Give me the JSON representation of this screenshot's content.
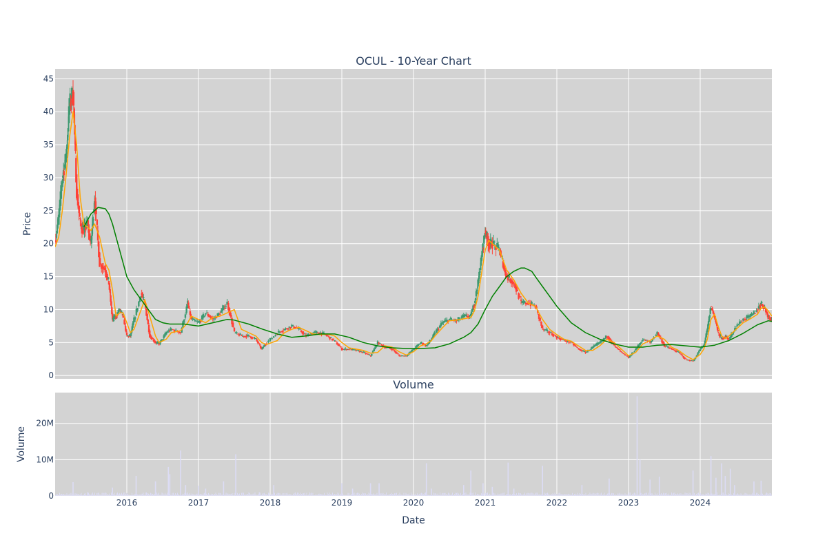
{
  "chart_data": [
    {
      "type": "candlestick",
      "title": "OCUL - 10-Year Chart",
      "ylabel": "Price",
      "ylim": [
        -0.5,
        46.5
      ],
      "y_ticks": [
        0,
        5,
        10,
        15,
        20,
        25,
        30,
        35,
        40,
        45
      ],
      "y_tick_labels": [
        "0",
        "5",
        "10",
        "15",
        "20",
        "25",
        "30",
        "35",
        "40",
        "45"
      ],
      "x_range": [
        2015.0,
        2025.0
      ],
      "grid": true,
      "background": "#d3d3d3",
      "colors": {
        "increasing": "#3d9970",
        "decreasing": "#ff4136",
        "ma_short": "#ffa500",
        "ma_long": "#008000"
      },
      "series": [
        {
          "kind": "close",
          "x": [
            2015.0,
            2015.05,
            2015.1,
            2015.15,
            2015.2,
            2015.25,
            2015.3,
            2015.35,
            2015.4,
            2015.45,
            2015.5,
            2015.55,
            2015.62,
            2015.7,
            2015.75,
            2015.8,
            2015.85,
            2015.9,
            2015.95,
            2016.0,
            2016.05,
            2016.1,
            2016.2,
            2016.25,
            2016.32,
            2016.4,
            2016.45,
            2016.55,
            2016.62,
            2016.75,
            2016.85,
            2016.9,
            2017.0,
            2017.1,
            2017.2,
            2017.3,
            2017.4,
            2017.5,
            2017.6,
            2017.7,
            2017.8,
            2017.88,
            2017.95,
            2018.1,
            2018.2,
            2018.3,
            2018.4,
            2018.5,
            2018.6,
            2018.7,
            2018.8,
            2018.9,
            2019.0,
            2019.1,
            2019.2,
            2019.3,
            2019.4,
            2019.5,
            2019.6,
            2019.7,
            2019.8,
            2019.9,
            2020.0,
            2020.1,
            2020.18,
            2020.25,
            2020.3,
            2020.4,
            2020.5,
            2020.6,
            2020.7,
            2020.8,
            2020.85,
            2020.9,
            2020.95,
            2021.0,
            2021.05,
            2021.1,
            2021.2,
            2021.25,
            2021.3,
            2021.4,
            2021.5,
            2021.6,
            2021.7,
            2021.8,
            2021.9,
            2022.0,
            2022.1,
            2022.2,
            2022.3,
            2022.4,
            2022.5,
            2022.6,
            2022.7,
            2022.8,
            2022.9,
            2023.0,
            2023.1,
            2023.2,
            2023.3,
            2023.4,
            2023.5,
            2023.6,
            2023.7,
            2023.8,
            2023.9,
            2024.0,
            2024.05,
            2024.1,
            2024.15,
            2024.2,
            2024.25,
            2024.3,
            2024.35,
            2024.4,
            2024.5,
            2024.6,
            2024.7,
            2024.8,
            2024.85,
            2024.9,
            2024.95,
            2025.0
          ],
          "values": [
            20.5,
            24,
            30,
            33,
            41,
            43,
            28,
            23,
            22,
            23,
            20,
            27,
            17,
            16,
            14,
            8.5,
            9,
            10,
            9,
            6,
            6,
            8.5,
            12.5,
            11,
            6,
            5,
            4.8,
            6.5,
            7,
            6.5,
            11,
            8.5,
            8,
            9.5,
            8.5,
            9.5,
            11,
            6.5,
            6,
            6,
            5.5,
            4,
            5,
            6.5,
            7,
            7.5,
            7,
            6,
            6.5,
            6.5,
            6,
            5.2,
            4,
            4,
            3.8,
            3.5,
            3,
            5,
            4.3,
            4,
            3,
            3,
            4,
            5,
            4.5,
            5.5,
            6.5,
            8,
            8.5,
            8.3,
            9,
            9,
            11,
            14,
            18,
            22,
            20,
            20,
            19,
            17,
            15,
            14,
            11,
            11,
            10.5,
            7,
            6.5,
            5.8,
            5.3,
            5,
            4,
            3.5,
            4.3,
            5,
            6,
            4.5,
            3.5,
            2.7,
            4,
            5.5,
            5,
            6.5,
            4.5,
            4,
            3.5,
            2.4,
            2.2,
            4,
            4.5,
            7,
            10.5,
            9,
            6.5,
            5.5,
            6,
            5.5,
            7.5,
            8.5,
            9,
            10,
            11,
            10.2,
            9,
            8.5
          ]
        },
        {
          "kind": "ma_short",
          "x": [
            2015.0,
            2015.05,
            2015.1,
            2015.15,
            2015.2,
            2015.25,
            2015.3,
            2015.35,
            2015.4,
            2015.45,
            2015.5,
            2015.55,
            2015.62,
            2015.7,
            2015.75,
            2015.8,
            2015.85,
            2015.9,
            2015.95,
            2016.0,
            2016.05,
            2016.1,
            2016.2,
            2016.25,
            2016.32,
            2016.4,
            2016.45,
            2016.55,
            2016.62,
            2016.75,
            2016.85,
            2016.9,
            2017.0,
            2017.1,
            2017.2,
            2017.3,
            2017.4,
            2017.5,
            2017.6,
            2017.7,
            2017.8,
            2017.88,
            2017.95,
            2018.1,
            2018.2,
            2018.3,
            2018.4,
            2018.5,
            2018.6,
            2018.7,
            2018.8,
            2018.9,
            2019.0,
            2019.1,
            2019.2,
            2019.3,
            2019.4,
            2019.5,
            2019.6,
            2019.7,
            2019.8,
            2019.9,
            2020.0,
            2020.1,
            2020.18,
            2020.25,
            2020.3,
            2020.4,
            2020.5,
            2020.6,
            2020.7,
            2020.8,
            2020.85,
            2020.9,
            2020.95,
            2021.0,
            2021.05,
            2021.1,
            2021.2,
            2021.25,
            2021.3,
            2021.4,
            2021.5,
            2021.6,
            2021.7,
            2021.8,
            2021.9,
            2022.0,
            2022.1,
            2022.2,
            2022.3,
            2022.4,
            2022.5,
            2022.6,
            2022.7,
            2022.8,
            2022.9,
            2023.0,
            2023.1,
            2023.2,
            2023.3,
            2023.4,
            2023.5,
            2023.6,
            2023.7,
            2023.8,
            2023.9,
            2024.0,
            2024.05,
            2024.1,
            2024.15,
            2024.2,
            2024.25,
            2024.3,
            2024.35,
            2024.4,
            2024.5,
            2024.6,
            2024.7,
            2024.8,
            2024.85,
            2024.9,
            2024.95,
            2025.0
          ],
          "values": [
            19.5,
            21,
            25,
            30,
            36,
            40,
            35,
            27,
            23,
            22.5,
            22,
            23,
            21,
            17,
            16,
            13,
            9,
            9.5,
            9.5,
            8,
            6.5,
            7,
            10,
            11.5,
            9,
            6,
            5,
            5.5,
            6.5,
            6.8,
            8,
            9,
            8.5,
            8,
            8.8,
            9,
            9.5,
            10,
            7,
            6.5,
            6,
            5,
            4.7,
            5.3,
            6.5,
            7,
            7.3,
            6.8,
            6.3,
            6.2,
            6.3,
            6,
            5,
            4.2,
            4,
            3.8,
            3.4,
            3.5,
            4.5,
            4.3,
            3.6,
            3.1,
            3.6,
            4.5,
            4.8,
            5.3,
            6,
            7.2,
            8.3,
            8.4,
            8.6,
            8.8,
            9.8,
            12,
            15.5,
            19,
            20.5,
            20,
            19,
            17.5,
            16,
            14.5,
            12.5,
            11,
            10.5,
            8.5,
            7,
            6.2,
            5.5,
            5.2,
            4.5,
            3.8,
            3.8,
            4.5,
            5.5,
            5,
            4,
            3,
            3.5,
            4.8,
            5.3,
            6,
            5.5,
            4.3,
            3.8,
            3,
            2.4,
            3.2,
            4,
            5.5,
            8.5,
            9.3,
            7.5,
            6,
            5.6,
            6,
            7,
            8,
            8.6,
            9.3,
            10.2,
            10.4,
            9.8,
            9
          ]
        },
        {
          "kind": "ma_long",
          "x": [
            2015.0,
            2015.1,
            2015.2,
            2015.3,
            2015.4,
            2015.5,
            2015.6,
            2015.7,
            2015.75,
            2015.8,
            2015.9,
            2016.0,
            2016.1,
            2016.2,
            2016.3,
            2016.4,
            2016.5,
            2016.6,
            2016.8,
            2017.0,
            2017.2,
            2017.4,
            2017.5,
            2017.7,
            2017.9,
            2018.1,
            2018.3,
            2018.5,
            2018.7,
            2018.9,
            2019.1,
            2019.3,
            2019.5,
            2019.7,
            2019.9,
            2020.1,
            2020.3,
            2020.5,
            2020.7,
            2020.8,
            2020.9,
            2021.0,
            2021.1,
            2021.2,
            2021.3,
            2021.4,
            2021.5,
            2021.55,
            2021.65,
            2021.7,
            2021.8,
            2021.9,
            2022.0,
            2022.2,
            2022.4,
            2022.6,
            2022.8,
            2023.0,
            2023.2,
            2023.4,
            2023.6,
            2023.8,
            2023.9,
            2024.0,
            2024.2,
            2024.4,
            2024.6,
            2024.8,
            2024.95,
            2025.0
          ],
          "values": [
            null,
            null,
            null,
            null,
            22.5,
            24.5,
            25.5,
            25.3,
            24.5,
            23,
            19,
            15,
            13,
            11.5,
            10,
            8.5,
            8,
            7.8,
            7.8,
            7.5,
            8,
            8.5,
            8.4,
            7.8,
            7,
            6.3,
            5.8,
            6,
            6.3,
            6.3,
            5.8,
            5,
            4.5,
            4.2,
            4.1,
            4.1,
            4.2,
            4.8,
            5.8,
            6.5,
            7.8,
            10,
            12,
            13.5,
            15,
            15.8,
            16.3,
            16.3,
            15.8,
            15,
            13.5,
            12,
            10.5,
            8,
            6.5,
            5.5,
            4.8,
            4.3,
            4.3,
            4.6,
            4.7,
            4.5,
            4.4,
            4.3,
            4.6,
            5.3,
            6.4,
            7.7,
            8.3,
            8.2
          ]
        }
      ]
    },
    {
      "type": "bar",
      "title": "Volume",
      "xlabel": "Date",
      "ylabel": "Volume",
      "ylim": [
        0,
        28500000
      ],
      "y_ticks": [
        0,
        10000000,
        20000000
      ],
      "y_tick_labels": [
        "0",
        "10M",
        "20M"
      ],
      "x_range": [
        2015.0,
        2025.0
      ],
      "x_ticks": [
        2016,
        2017,
        2018,
        2019,
        2020,
        2021,
        2022,
        2023,
        2024
      ],
      "x_tick_labels": [
        "2016",
        "2017",
        "2018",
        "2019",
        "2020",
        "2021",
        "2022",
        "2023",
        "2024"
      ],
      "grid": true,
      "background": "#d3d3d3",
      "bar_color": "#dcdcf5",
      "x": [
        2015.25,
        2015.45,
        2015.8,
        2016.13,
        2016.4,
        2016.58,
        2016.6,
        2016.75,
        2016.82,
        2017.0,
        2017.1,
        2017.35,
        2017.52,
        2017.85,
        2018.05,
        2019.0,
        2019.15,
        2019.4,
        2019.52,
        2020.18,
        2020.25,
        2020.7,
        2020.8,
        2020.97,
        2021.1,
        2021.32,
        2021.4,
        2021.8,
        2022.35,
        2022.73,
        2023.12,
        2023.16,
        2023.3,
        2023.43,
        2023.9,
        2024.15,
        2024.22,
        2024.3,
        2024.35,
        2024.42,
        2024.48,
        2024.75,
        2024.85
      ],
      "values": [
        3800000,
        1000000,
        2300000,
        5500000,
        4000000,
        8000000,
        6000000,
        12500000,
        3000000,
        2800000,
        2000000,
        4000000,
        11500000,
        1000000,
        3000000,
        3500000,
        2000000,
        3500000,
        3500000,
        9000000,
        2000000,
        3000000,
        7000000,
        3500000,
        2500000,
        9200000,
        2000000,
        8300000,
        3000000,
        4800000,
        27500000,
        10000000,
        4500000,
        5300000,
        7000000,
        11000000,
        5000000,
        9000000,
        5500000,
        7500000,
        3000000,
        4000000,
        4200000
      ]
    }
  ]
}
